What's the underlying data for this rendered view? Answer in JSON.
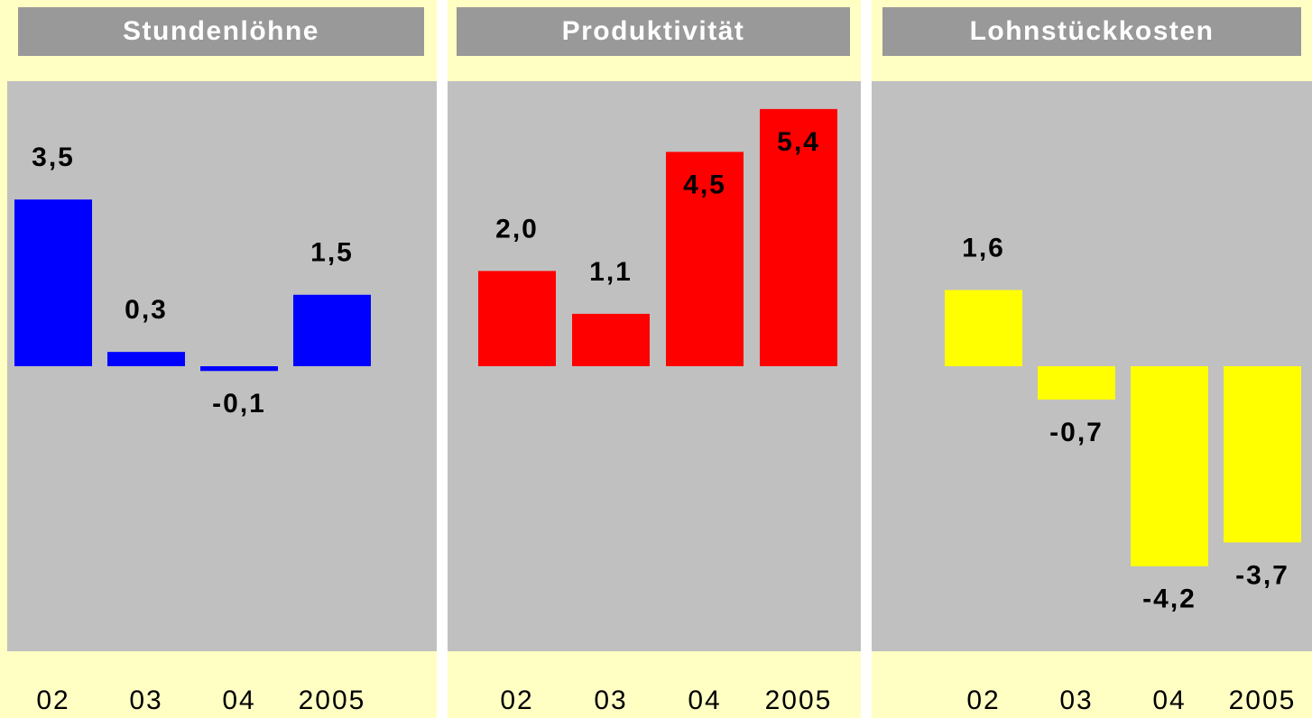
{
  "chart_data": [
    {
      "type": "bar",
      "title": "Stundenlöhne",
      "categories": [
        "02",
        "03",
        "04",
        "2005"
      ],
      "values": [
        3.5,
        0.3,
        -0.1,
        1.5
      ],
      "value_labels": [
        "3,5",
        "0,3",
        "-0,1",
        "1,5"
      ],
      "color": "#0000ff"
    },
    {
      "type": "bar",
      "title": "Produktivität",
      "categories": [
        "02",
        "03",
        "04",
        "2005"
      ],
      "values": [
        2.0,
        1.1,
        4.5,
        5.4
      ],
      "value_labels": [
        "2,0",
        "1,1",
        "4,5",
        "5,4"
      ],
      "color": "#ff0000"
    },
    {
      "type": "bar",
      "title": "Lohnstückkosten",
      "categories": [
        "02",
        "03",
        "04",
        "2005"
      ],
      "values": [
        1.6,
        -0.7,
        -4.2,
        -3.7
      ],
      "value_labels": [
        "1,6",
        "-0,7",
        "-4,2",
        "-3,7"
      ],
      "color": "#ffff00"
    }
  ]
}
